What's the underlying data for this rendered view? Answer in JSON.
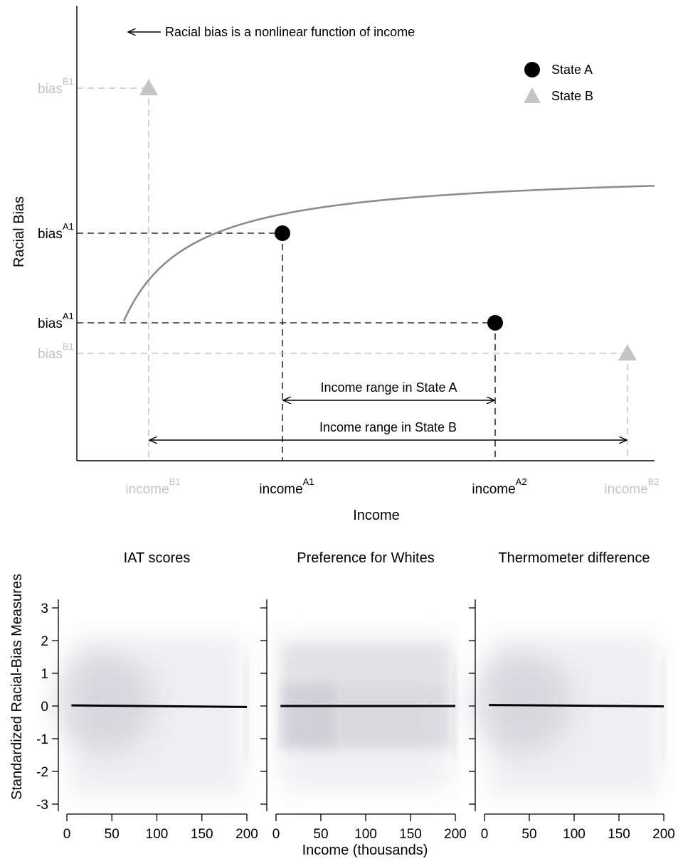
{
  "colors": {
    "state_a": "#000000",
    "state_b": "#c4c4c4",
    "curve": "#8c8c8c",
    "guide_a": "#000000",
    "guide_b": "#bbbbbb",
    "density": "#8a8a9c"
  },
  "chart_data": [
    {
      "type": "line",
      "title": "",
      "xlabel": "Income",
      "ylabel": "Racial Bias",
      "grid": false,
      "legend_position": "top-right",
      "curve_label": "Racial bias is a nonlinear function of income",
      "curve_function": "nonlinear decreasing (hyperbolic-like) function of income",
      "legend": [
        {
          "name": "State A",
          "marker": "circle",
          "color": "#000000"
        },
        {
          "name": "State B",
          "marker": "triangle",
          "color": "#c4c4c4"
        }
      ],
      "x_ticks": [
        {
          "base": "income",
          "sup": "B1",
          "group": "B"
        },
        {
          "base": "income",
          "sup": "A1",
          "group": "A"
        },
        {
          "base": "income",
          "sup": "A2",
          "group": "A"
        },
        {
          "base": "income",
          "sup": "B2",
          "group": "B"
        }
      ],
      "y_ticks": [
        {
          "base": "bias",
          "sup": "B1",
          "group": "B"
        },
        {
          "base": "bias",
          "sup": "A1",
          "group": "A"
        },
        {
          "base": "bias",
          "sup": "A1",
          "group": "A"
        },
        {
          "base": "bias",
          "sup": "B1",
          "group": "B"
        }
      ],
      "ranges": [
        {
          "label": "Income range in State A",
          "group": "A"
        },
        {
          "label": "Income range in State B",
          "group": "B"
        }
      ]
    },
    {
      "type": "scatter",
      "ylabel": "Standardized Racial-Bias Measures",
      "xlabel": "Income (thousands)",
      "xlim": [
        0,
        200
      ],
      "ylim": [
        -3,
        3
      ],
      "x_ticks": [
        0,
        50,
        100,
        150,
        200
      ],
      "y_ticks": [
        -3,
        -2,
        -1,
        0,
        1,
        2,
        3
      ],
      "grid": false,
      "panels": [
        {
          "title": "IAT scores",
          "fit_line": {
            "x": [
              5,
              200
            ],
            "y": [
              0.02,
              -0.03
            ]
          },
          "density_style": "diffuse"
        },
        {
          "title": "Preference for Whites",
          "fit_line": {
            "x": [
              5,
              200
            ],
            "y": [
              0.0,
              0.0
            ]
          },
          "density_style": "banded"
        },
        {
          "title": "Thermometer difference",
          "fit_line": {
            "x": [
              5,
              200
            ],
            "y": [
              0.03,
              -0.01
            ]
          },
          "density_style": "diffuse"
        }
      ]
    }
  ]
}
